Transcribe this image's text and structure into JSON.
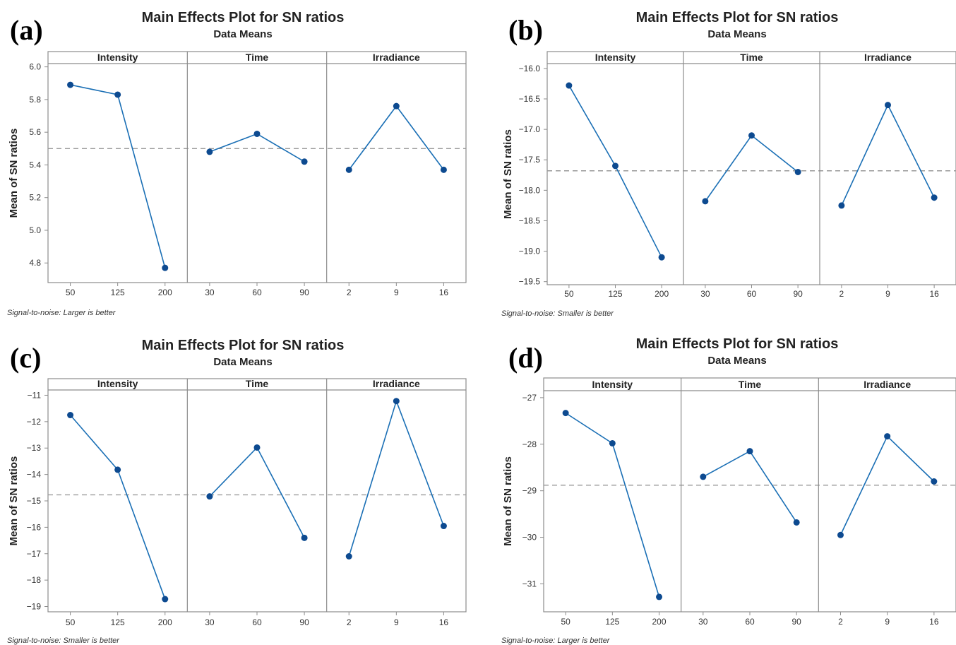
{
  "chart_data": [
    {
      "type": "line",
      "label": "(a)",
      "title": "Main Effects Plot for SN ratios",
      "subtitle": "Data Means",
      "ylabel": "Mean of SN ratios",
      "footnote": "Signal-to-noise: Larger is better",
      "ylim": [
        4.68,
        6.02
      ],
      "yticks": [
        "6.0",
        "5.8",
        "5.6",
        "5.4",
        "5.2",
        "5.0",
        "4.8"
      ],
      "mean_line": 5.5,
      "panels": [
        {
          "name": "Intensity",
          "categories": [
            "50",
            "125",
            "200"
          ],
          "values": [
            5.89,
            5.83,
            4.77
          ]
        },
        {
          "name": "Time",
          "categories": [
            "30",
            "60",
            "90"
          ],
          "values": [
            5.48,
            5.59,
            5.42
          ]
        },
        {
          "name": "Irradiance",
          "categories": [
            "2",
            "9",
            "16"
          ],
          "values": [
            5.37,
            5.76,
            5.37
          ]
        }
      ]
    },
    {
      "type": "line",
      "label": "(b)",
      "title": "Main Effects Plot for SN ratios",
      "subtitle": "Data Means",
      "ylabel": "Mean of SN ratios",
      "footnote": "Signal-to-noise: Smaller is better",
      "ylim": [
        -19.55,
        -15.92
      ],
      "yticks": [
        "-16.0",
        "-16.5",
        "-17.0",
        "-17.5",
        "-18.0",
        "-18.5",
        "-19.0",
        "-19.5"
      ],
      "mean_line": -17.68,
      "panels": [
        {
          "name": "Intensity",
          "categories": [
            "50",
            "125",
            "200"
          ],
          "values": [
            -16.28,
            -17.6,
            -19.1
          ]
        },
        {
          "name": "Time",
          "categories": [
            "30",
            "60",
            "90"
          ],
          "values": [
            -18.18,
            -17.1,
            -17.7
          ]
        },
        {
          "name": "Irradiance",
          "categories": [
            "2",
            "9",
            "16"
          ],
          "values": [
            -18.25,
            -16.6,
            -18.12
          ]
        }
      ]
    },
    {
      "type": "line",
      "label": "(c)",
      "title": "Main Effects Plot for SN ratios",
      "subtitle": "Data Means",
      "ylabel": "Mean of SN ratios",
      "footnote": "Signal-to-noise: Smaller is better",
      "ylim": [
        -19.2,
        -10.8
      ],
      "yticks": [
        "-11",
        "-12",
        "-13",
        "-14",
        "-15",
        "-16",
        "-17",
        "-18",
        "-19"
      ],
      "mean_line": -14.77,
      "panels": [
        {
          "name": "Intensity",
          "categories": [
            "50",
            "125",
            "200"
          ],
          "values": [
            -11.75,
            -13.82,
            -18.72
          ]
        },
        {
          "name": "Time",
          "categories": [
            "30",
            "60",
            "90"
          ],
          "values": [
            -14.83,
            -12.98,
            -16.4
          ]
        },
        {
          "name": "Irradiance",
          "categories": [
            "2",
            "9",
            "16"
          ],
          "values": [
            -17.1,
            -11.22,
            -15.95
          ]
        }
      ]
    },
    {
      "type": "line",
      "label": "(d)",
      "title": "Main Effects Plot for SN ratios",
      "subtitle": "Data Means",
      "ylabel": "Mean of SN ratios",
      "footnote": "Signal-to-noise: Larger is better",
      "ylim": [
        -31.6,
        -26.85
      ],
      "yticks": [
        "-27",
        "-28",
        "-29",
        "-30",
        "-31"
      ],
      "mean_line": -28.88,
      "panels": [
        {
          "name": "Intensity",
          "categories": [
            "50",
            "125",
            "200"
          ],
          "values": [
            -27.33,
            -27.98,
            -31.28
          ]
        },
        {
          "name": "Time",
          "categories": [
            "30",
            "60",
            "90"
          ],
          "values": [
            -28.7,
            -28.15,
            -29.68
          ]
        },
        {
          "name": "Irradiance",
          "categories": [
            "2",
            "9",
            "16"
          ],
          "values": [
            -29.95,
            -27.83,
            -28.8
          ]
        }
      ]
    }
  ],
  "colors": {
    "series": "#1a6fb5",
    "marker": "#0d4a90",
    "mean_line": "#9a9a9a",
    "frame": "#8c8c8c"
  }
}
